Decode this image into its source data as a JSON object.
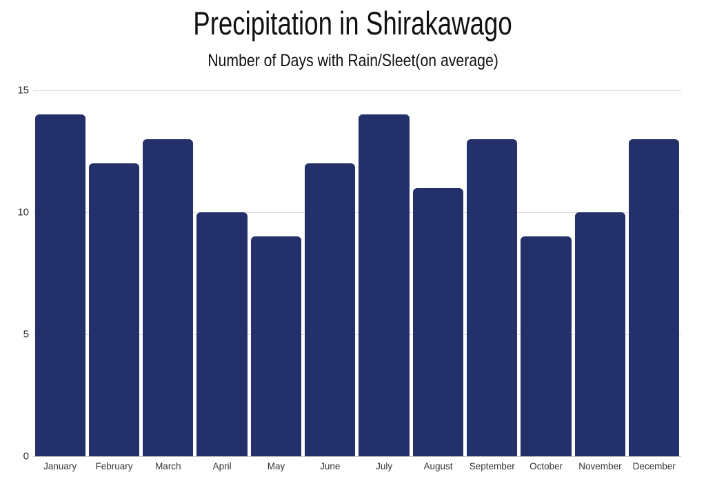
{
  "chart_data": {
    "type": "bar",
    "title": "Precipitation in Shirakawago",
    "subtitle": "Number of Days with Rain/Sleet(on average)",
    "categories": [
      "January",
      "February",
      "March",
      "April",
      "May",
      "June",
      "July",
      "August",
      "September",
      "October",
      "November",
      "December"
    ],
    "values": [
      14,
      12,
      13,
      10,
      9,
      12,
      14,
      11,
      13,
      9,
      10,
      13
    ],
    "xlabel": "",
    "ylabel": "",
    "ylim": [
      0,
      15
    ],
    "yticks": [
      0,
      5,
      10,
      15
    ],
    "grid": true,
    "legend_position": "none",
    "bar_color": "#233069",
    "gridline_color": "#dcdcdc",
    "baseline_color": "#c9c9c9",
    "title_color": "#111111",
    "tick_label_color": "#2b2b2b",
    "background_color": "#ffffff"
  }
}
